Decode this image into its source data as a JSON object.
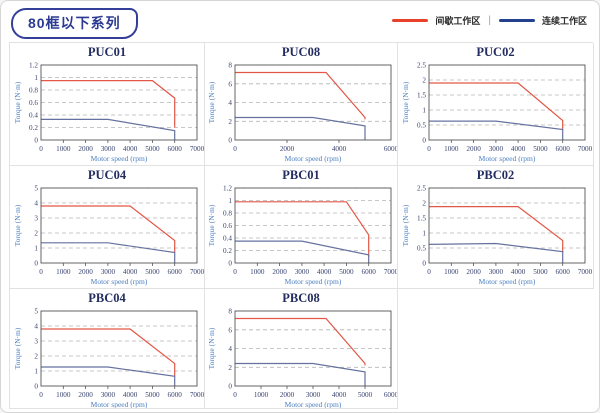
{
  "page": {
    "title": "80框以下系列"
  },
  "legend": {
    "separator": "|",
    "items": [
      {
        "label": "间歇工作区",
        "color": "#e8432a"
      },
      {
        "label": "连续工作区",
        "color": "#24418e"
      }
    ]
  },
  "colors": {
    "intermittent_line": "#e25746",
    "continuous_line": "#66719f",
    "chip_border": "#333f99",
    "grid_border": "#e2e2e2",
    "axis_label_blue": "#4a7fc1",
    "tick_navy": "#38426f"
  },
  "chart_data": [
    {
      "type": "line",
      "title": "PUC01",
      "xlabel": "Motor speed (rpm)",
      "ylabel": "Torque (N·m)",
      "xlim": [
        0,
        7000
      ],
      "ylim": [
        0,
        1.2
      ],
      "xticks": [
        0,
        1000,
        2000,
        3000,
        4000,
        5000,
        6000,
        7000
      ],
      "yticks": [
        0,
        0.2,
        0.4,
        0.6,
        0.8,
        1,
        1.2
      ],
      "series": [
        {
          "name": "间歇工作区",
          "color": "#e25746",
          "points": [
            [
              0,
              0.95
            ],
            [
              5000,
              0.95
            ],
            [
              6000,
              0.67
            ],
            [
              6000,
              0.2
            ]
          ]
        },
        {
          "name": "连续工作区",
          "color": "#66719f",
          "points": [
            [
              0,
              0.33
            ],
            [
              3000,
              0.33
            ],
            [
              6000,
              0.15
            ],
            [
              6000,
              0
            ]
          ]
        }
      ]
    },
    {
      "type": "line",
      "title": "PUC08",
      "xlabel": "Motor speed (rpm)",
      "ylabel": "Torque (N·m)",
      "xlim": [
        0,
        6000
      ],
      "ylim": [
        0,
        8
      ],
      "xticks": [
        0,
        2000,
        4000,
        6000
      ],
      "yticks": [
        0,
        2,
        4,
        6,
        8
      ],
      "series": [
        {
          "name": "间歇工作区",
          "color": "#e25746",
          "points": [
            [
              0,
              7.2
            ],
            [
              3500,
              7.2
            ],
            [
              5000,
              2.4
            ],
            [
              5000,
              2.2
            ]
          ]
        },
        {
          "name": "连续工作区",
          "color": "#66719f",
          "points": [
            [
              0,
              2.4
            ],
            [
              3000,
              2.4
            ],
            [
              5000,
              1.5
            ],
            [
              5000,
              0
            ]
          ]
        }
      ]
    },
    {
      "type": "line",
      "title": "PUC02",
      "xlabel": "Motor speed (rpm)",
      "ylabel": "Torque (N·m)",
      "xlim": [
        0,
        7000
      ],
      "ylim": [
        0,
        2.5
      ],
      "xticks": [
        0,
        1000,
        2000,
        3000,
        4000,
        5000,
        6000,
        7000
      ],
      "yticks": [
        0,
        0.5,
        1,
        1.5,
        2,
        2.5
      ],
      "series": [
        {
          "name": "间歇工作区",
          "color": "#e25746",
          "points": [
            [
              0,
              1.9
            ],
            [
              4000,
              1.9
            ],
            [
              6000,
              0.65
            ],
            [
              6000,
              0.35
            ]
          ]
        },
        {
          "name": "连续工作区",
          "color": "#66719f",
          "points": [
            [
              0,
              0.63
            ],
            [
              3000,
              0.63
            ],
            [
              6000,
              0.35
            ],
            [
              6000,
              0
            ]
          ]
        }
      ]
    },
    {
      "type": "line",
      "title": "PUC04",
      "xlabel": "Motor speed (rpm)",
      "ylabel": "Torque (N·m)",
      "xlim": [
        0,
        7000
      ],
      "ylim": [
        0,
        5
      ],
      "xticks": [
        0,
        1000,
        2000,
        3000,
        4000,
        5000,
        6000,
        7000
      ],
      "yticks": [
        0,
        1,
        2,
        3,
        4,
        5
      ],
      "series": [
        {
          "name": "间歇工作区",
          "color": "#e25746",
          "points": [
            [
              0,
              3.8
            ],
            [
              4000,
              3.8
            ],
            [
              6000,
              1.5
            ],
            [
              6000,
              0.7
            ]
          ]
        },
        {
          "name": "连续工作区",
          "color": "#66719f",
          "points": [
            [
              0,
              1.35
            ],
            [
              3000,
              1.35
            ],
            [
              6000,
              0.7
            ],
            [
              6000,
              0
            ]
          ]
        }
      ]
    },
    {
      "type": "line",
      "title": "PBC01",
      "xlabel": "Motor speed (rpm)",
      "ylabel": "Torque (N·m)",
      "xlim": [
        0,
        7000
      ],
      "ylim": [
        0,
        1.2
      ],
      "xticks": [
        0,
        1000,
        2000,
        3000,
        4000,
        5000,
        6000,
        7000
      ],
      "yticks": [
        0,
        0.2,
        0.4,
        0.6,
        0.8,
        1,
        1.2
      ],
      "series": [
        {
          "name": "间歇工作区",
          "color": "#e25746",
          "points": [
            [
              0,
              0.98
            ],
            [
              5000,
              0.98
            ],
            [
              6000,
              0.45
            ],
            [
              6000,
              0.1
            ]
          ]
        },
        {
          "name": "连续工作区",
          "color": "#66719f",
          "points": [
            [
              0,
              0.35
            ],
            [
              3000,
              0.35
            ],
            [
              6000,
              0.13
            ],
            [
              6000,
              0
            ]
          ]
        }
      ]
    },
    {
      "type": "line",
      "title": "PBC02",
      "xlabel": "Motor speed (rpm)",
      "ylabel": "Torque (N·m)",
      "xlim": [
        0,
        7000
      ],
      "ylim": [
        0,
        2.5
      ],
      "xticks": [
        0,
        1000,
        2000,
        3000,
        4000,
        5000,
        6000,
        7000
      ],
      "yticks": [
        0,
        0.5,
        1,
        1.5,
        2,
        2.5
      ],
      "series": [
        {
          "name": "间歇工作区",
          "color": "#e25746",
          "points": [
            [
              0,
              1.88
            ],
            [
              4000,
              1.88
            ],
            [
              6000,
              0.75
            ],
            [
              6000,
              0.35
            ]
          ]
        },
        {
          "name": "连续工作区",
          "color": "#66719f",
          "points": [
            [
              0,
              0.62
            ],
            [
              3000,
              0.65
            ],
            [
              6000,
              0.38
            ],
            [
              6000,
              0
            ]
          ]
        }
      ]
    },
    {
      "type": "line",
      "title": "PBC04",
      "xlabel": "Motor speed (rpm)",
      "ylabel": "Torque (N·m)",
      "xlim": [
        0,
        7000
      ],
      "ylim": [
        0,
        5
      ],
      "xticks": [
        0,
        1000,
        2000,
        3000,
        4000,
        5000,
        6000,
        7000
      ],
      "yticks": [
        0,
        1,
        2,
        3,
        4,
        5
      ],
      "series": [
        {
          "name": "间歇工作区",
          "color": "#e25746",
          "points": [
            [
              0,
              3.8
            ],
            [
              4000,
              3.8
            ],
            [
              6000,
              1.5
            ],
            [
              6000,
              0.65
            ]
          ]
        },
        {
          "name": "连续工作区",
          "color": "#66719f",
          "points": [
            [
              0,
              1.27
            ],
            [
              3000,
              1.27
            ],
            [
              6000,
              0.65
            ],
            [
              6000,
              0
            ]
          ]
        }
      ]
    },
    {
      "type": "line",
      "title": "PBC08",
      "xlabel": "Motor speed (rpm)",
      "ylabel": "Torque (N·m)",
      "xlim": [
        0,
        6000
      ],
      "ylim": [
        0,
        8
      ],
      "xticks": [
        0,
        1000,
        2000,
        3000,
        4000,
        5000,
        6000
      ],
      "yticks": [
        0,
        2,
        4,
        6,
        8
      ],
      "series": [
        {
          "name": "间歇工作区",
          "color": "#e25746",
          "points": [
            [
              0,
              7.2
            ],
            [
              3500,
              7.2
            ],
            [
              5000,
              2.4
            ],
            [
              5000,
              2.2
            ]
          ]
        },
        {
          "name": "连续工作区",
          "color": "#66719f",
          "points": [
            [
              0,
              2.4
            ],
            [
              3000,
              2.4
            ],
            [
              5000,
              1.5
            ],
            [
              5000,
              0
            ]
          ]
        }
      ]
    }
  ]
}
